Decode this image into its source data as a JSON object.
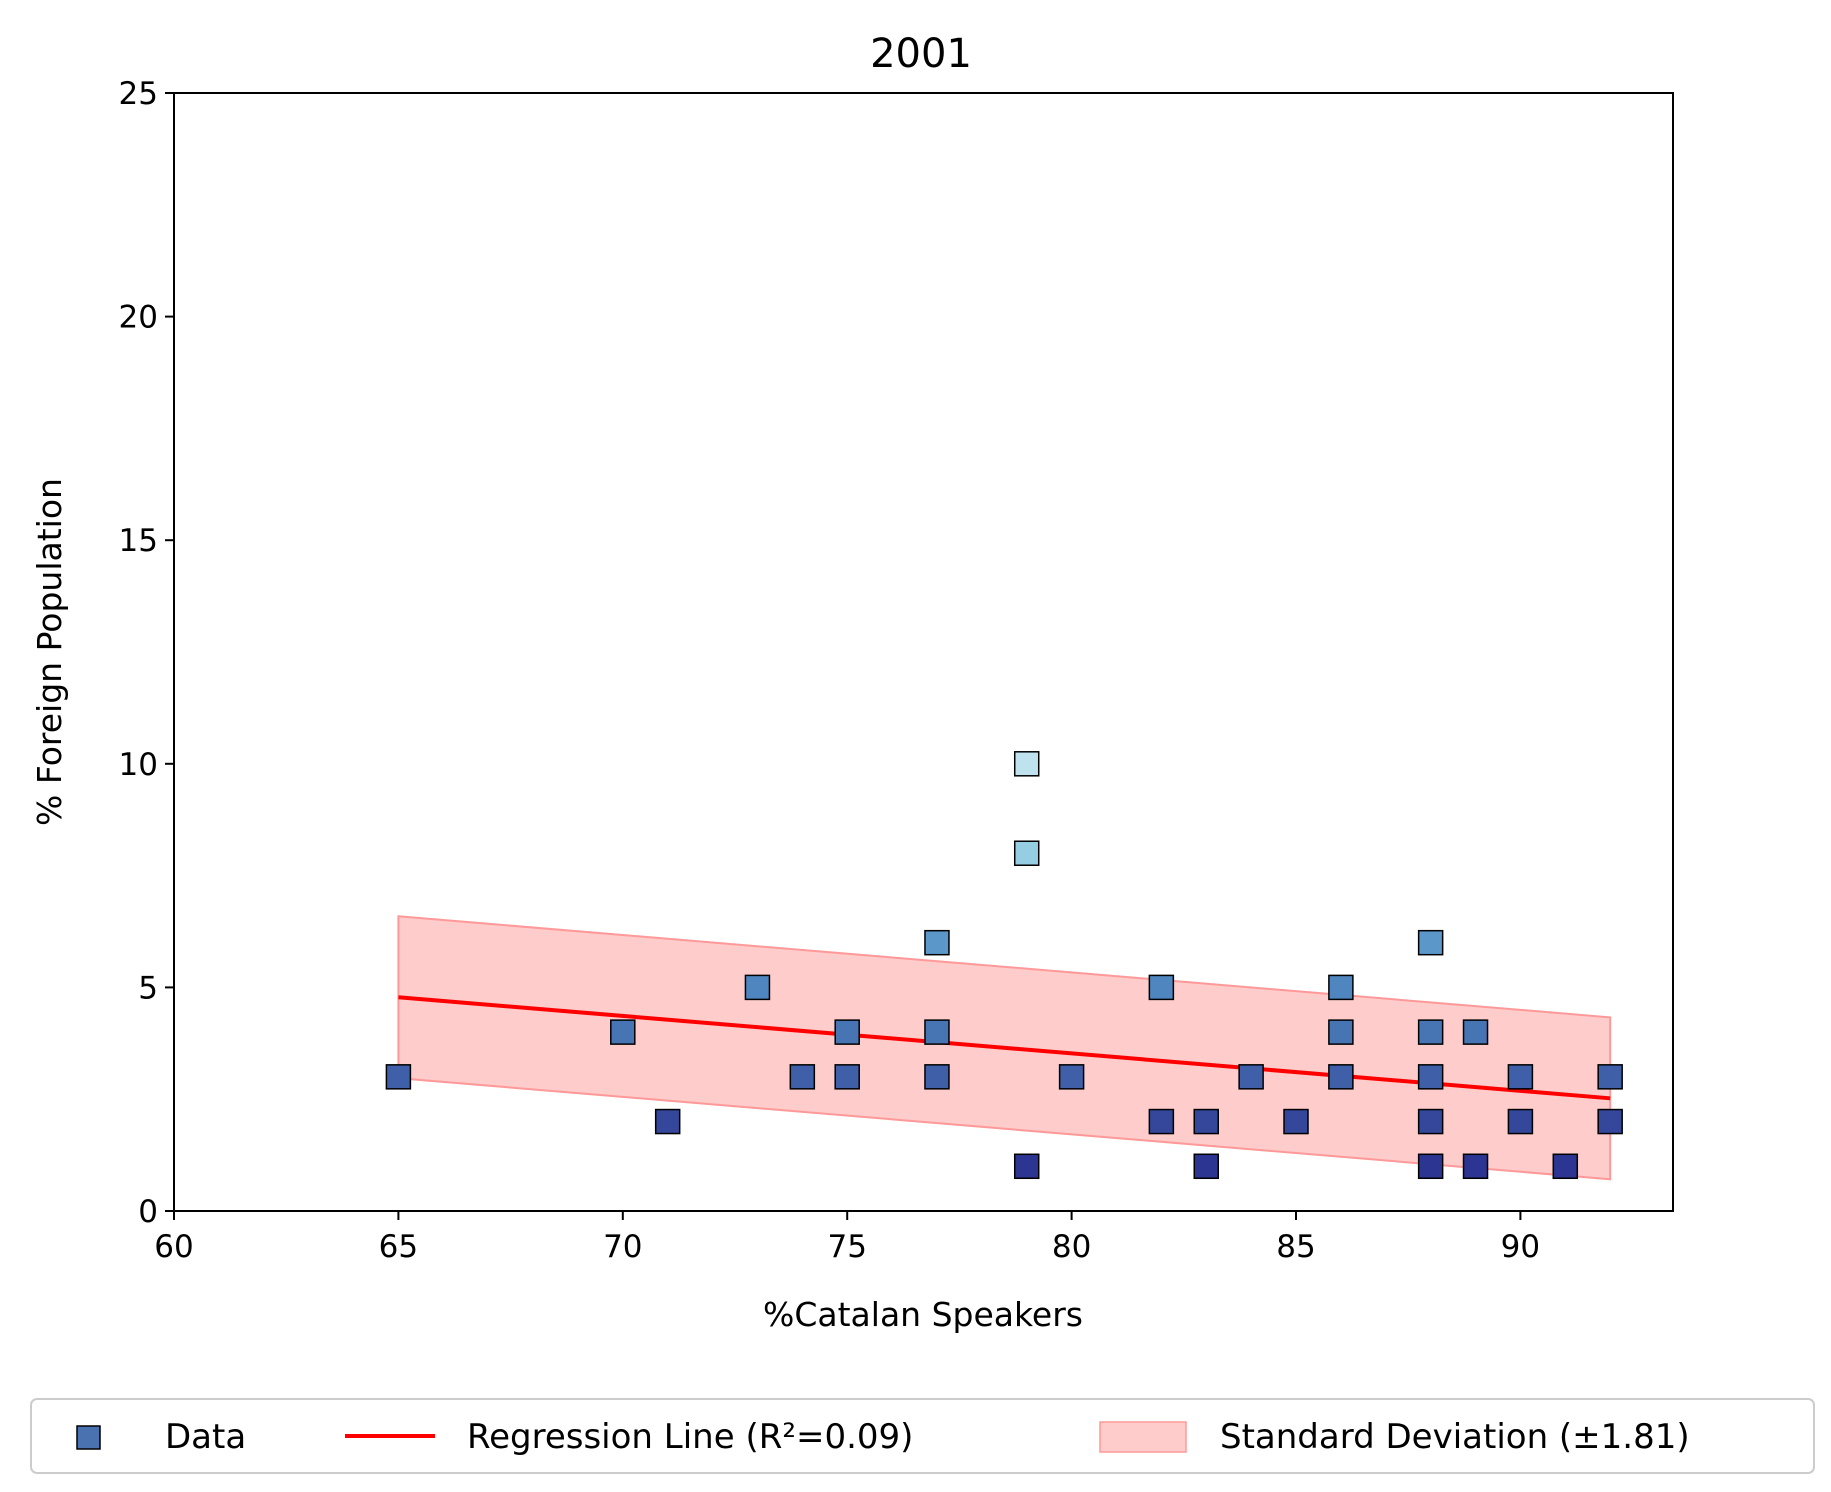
{
  "chart_data": {
    "type": "scatter",
    "title": "2001",
    "xlabel": "%Catalan Speakers",
    "ylabel": "% Foreign Population",
    "xlim": [
      60,
      93.4
    ],
    "ylim": [
      0,
      25
    ],
    "xticks": [
      "60",
      "65",
      "70",
      "75",
      "80",
      "85",
      "90"
    ],
    "yticks": [
      "0",
      "5",
      "10",
      "15",
      "20",
      "25"
    ],
    "grid": false,
    "legend_position": "bottom, below plot",
    "legend": {
      "data_label": "Data",
      "regression_label": "Regression Line (R²=0.09)",
      "std_label": "Standard Deviation (±1.81)"
    },
    "colors": {
      "regression_line": "#ff0000",
      "std_band_fill": "#ffcccc",
      "std_band_edge": "#ff9999",
      "legend_marker": "#4a72b0"
    },
    "regression": {
      "x": [
        65,
        92
      ],
      "y": [
        4.78,
        2.52
      ],
      "r2": 0.09
    },
    "std_dev": 1.81,
    "points": [
      {
        "x": 65,
        "y": 3,
        "color": "#3f5fa8"
      },
      {
        "x": 70,
        "y": 4,
        "color": "#4774b3"
      },
      {
        "x": 71,
        "y": 2,
        "color": "#34479a"
      },
      {
        "x": 73,
        "y": 5,
        "color": "#4f86bf"
      },
      {
        "x": 74,
        "y": 3,
        "color": "#3f5fa8"
      },
      {
        "x": 75,
        "y": 4,
        "color": "#4774b3"
      },
      {
        "x": 75,
        "y": 3,
        "color": "#3f5fa8"
      },
      {
        "x": 77,
        "y": 6,
        "color": "#5b98c9"
      },
      {
        "x": 77,
        "y": 4,
        "color": "#4774b3"
      },
      {
        "x": 77,
        "y": 3,
        "color": "#3f5fa8"
      },
      {
        "x": 79,
        "y": 10,
        "color": "#bfe3ee"
      },
      {
        "x": 79,
        "y": 8,
        "color": "#95cde3"
      },
      {
        "x": 79,
        "y": 1,
        "color": "#2c3591"
      },
      {
        "x": 80,
        "y": 3,
        "color": "#3f5fa8"
      },
      {
        "x": 82,
        "y": 5,
        "color": "#4f86bf"
      },
      {
        "x": 82,
        "y": 2,
        "color": "#34479a"
      },
      {
        "x": 83,
        "y": 2,
        "color": "#34479a"
      },
      {
        "x": 83,
        "y": 1,
        "color": "#2c3591"
      },
      {
        "x": 84,
        "y": 3,
        "color": "#3f5fa8"
      },
      {
        "x": 85,
        "y": 2,
        "color": "#34479a"
      },
      {
        "x": 86,
        "y": 5,
        "color": "#4f86bf"
      },
      {
        "x": 86,
        "y": 4,
        "color": "#4774b3"
      },
      {
        "x": 86,
        "y": 3,
        "color": "#3f5fa8"
      },
      {
        "x": 88,
        "y": 6,
        "color": "#5b98c9"
      },
      {
        "x": 88,
        "y": 4,
        "color": "#4774b3"
      },
      {
        "x": 88,
        "y": 3,
        "color": "#3f5fa8"
      },
      {
        "x": 88,
        "y": 2,
        "color": "#34479a"
      },
      {
        "x": 88,
        "y": 1,
        "color": "#2c3591"
      },
      {
        "x": 89,
        "y": 4,
        "color": "#4774b3"
      },
      {
        "x": 89,
        "y": 1,
        "color": "#2c3591"
      },
      {
        "x": 90,
        "y": 3,
        "color": "#3f5fa8"
      },
      {
        "x": 90,
        "y": 2,
        "color": "#34479a"
      },
      {
        "x": 91,
        "y": 1,
        "color": "#2c3591"
      },
      {
        "x": 92,
        "y": 3,
        "color": "#3f5fa8"
      },
      {
        "x": 92,
        "y": 2,
        "color": "#34479a"
      }
    ]
  }
}
